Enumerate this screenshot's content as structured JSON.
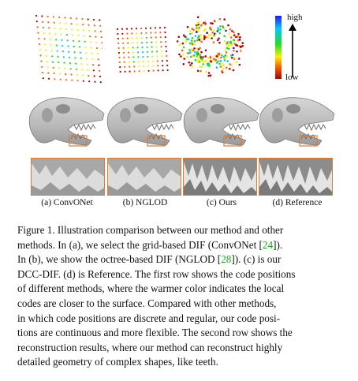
{
  "colorbar": {
    "high_label": "high",
    "low_label": "low",
    "colors": [
      "#1a1aff",
      "#00c8ff",
      "#22dd22",
      "#ffee00",
      "#ff6600",
      "#b00000"
    ]
  },
  "panels": [
    {
      "label": "(a) ConvONet"
    },
    {
      "label": "(b) NGLOD"
    },
    {
      "label": "(c) Ours"
    },
    {
      "label": "(d) Reference"
    }
  ],
  "caption": {
    "lines": [
      "Figure 1. Illustration comparison between our method and other",
      "methods. In (a), we select the grid-based DIF (ConvONet [24]).",
      "In (b), we show the octree-based DIF (NGLOD [28]). (c) is our",
      "DCC-DIF. (d) is Reference. The first row shows the code positions",
      "of different methods, where the warmer color indicates the local",
      "codes are closer to the surface. Compared with other methods,",
      "in which code positions are discrete and regular, our code posi-",
      "tions are continuous and more flexible. The second row shows the",
      "reconstruction results, where our method can reconstruct highly",
      "detailed geometry of complex shapes, like teeth."
    ],
    "ref_color": "#1ea31e"
  }
}
